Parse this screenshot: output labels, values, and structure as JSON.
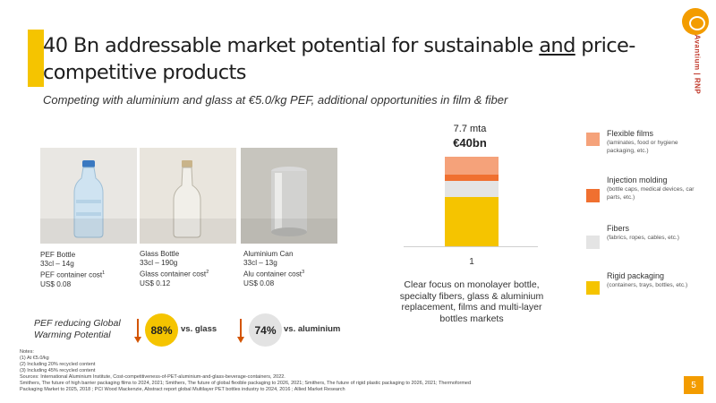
{
  "header": {
    "title_part1": "40 Bn addressable market potential for sustainable ",
    "title_underlined": "and",
    "title_part2": " price-competitive products",
    "subtitle": "Competing with aluminium and glass at €5.0/kg PEF, additional opportunities in film & fiber"
  },
  "brand": {
    "name": "Avantium | RNP",
    "logo_icon": "avantium-logo-icon"
  },
  "products": [
    {
      "name": "PEF Bottle",
      "spec": "33cl – 14g",
      "cost_label": "PEF container cost",
      "cost_sup": "1",
      "cost": "US$ 0.08"
    },
    {
      "name": "Glass Bottle",
      "spec": "33cl – 190g",
      "cost_label": "Glass container cost",
      "cost_sup": "2",
      "cost": "US$ 0.12"
    },
    {
      "name": "Aluminium Can",
      "spec": "33cl – 13g",
      "extra": "Alu container cost",
      "extra_sup": "3",
      "cost": "US$ 0.08"
    }
  ],
  "gwp": {
    "label": "PEF reducing Global Warming Potential",
    "glass_value": "88%",
    "glass_label": "vs. glass",
    "alu_value": "74%",
    "alu_label": "vs. aluminium",
    "arrow_color": "#d35400"
  },
  "chart_data": {
    "type": "bar",
    "stacked": true,
    "categories": [
      "1"
    ],
    "top_label_volume": "7.7 mta",
    "top_label_value": "€40bn",
    "series": [
      {
        "name": "Rigid packaging",
        "values": [
          0.55
        ],
        "color": "#f5c400"
      },
      {
        "name": "Fibers",
        "values": [
          0.18
        ],
        "color": "#e4e4e4"
      },
      {
        "name": "Injection molding",
        "values": [
          0.07
        ],
        "color": "#f07030"
      },
      {
        "name": "Flexible films",
        "values": [
          0.2
        ],
        "color": "#f5a27a"
      }
    ],
    "note": "segment heights are approximate shares of the stacked bar"
  },
  "legend": [
    {
      "title": "Flexible films",
      "desc": "(laminates, food or hygiene packaging, etc.)",
      "color": "#f5a27a"
    },
    {
      "title": "Injection molding",
      "desc": "(bottle caps, medical devices, car parts, etc.)",
      "color": "#f07030"
    },
    {
      "title": "Fibers",
      "desc": "(fabrics, ropes, cables, etc.)",
      "color": "#e4e4e4"
    },
    {
      "title": "Rigid packaging",
      "desc": "(containers, trays, bottles, etc.)",
      "color": "#f5c400"
    }
  ],
  "focus_text": "Clear focus on monolayer bottle, specialty fibers, glass & aluminium replacement, films and multi-layer bottles markets",
  "notes": {
    "heading": "Notes:",
    "n1": "(1)      At €5.0/kg",
    "n2": "(2)      Including 20% recycled content",
    "n3": "(3)      Including 45% recycled content",
    "sources1": "Sources: International Aluminium Institute, Cost-competitiveness-of-PET-aluminium-and-glass-beverage-containers, 2022.",
    "sources2": "Smithers, The future of high barrier packaging films to 2024, 2021; Smithers, The future of global flexible packaging to 2026, 2021; Smithers, The future of rigid plastic packaging to 2026, 2021; Thermoformed",
    "sources3": "Packaging Market to 2025, 2018 ; PCI Wood Mackenzie, Abstract report global Multilayer PET bottles industry to 2024, 2016 ; Allied Market Research"
  },
  "page_number": "5"
}
